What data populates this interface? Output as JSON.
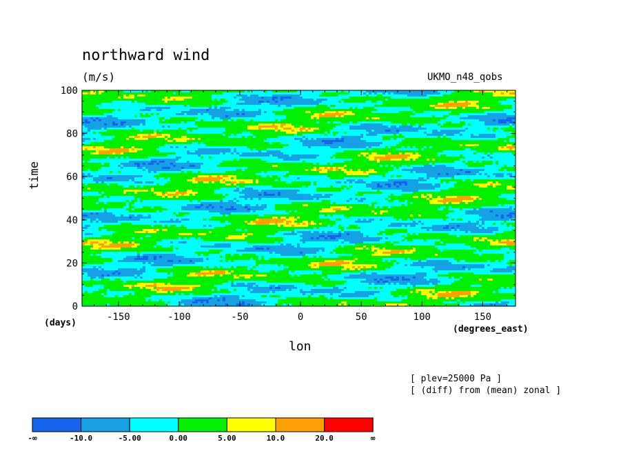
{
  "title": "northward wind",
  "units": "(m/s)",
  "dataset": "UKMO_n48_qobs",
  "notes": [
    "[ plev=25000 Pa ]",
    "[ (diff) from (mean) zonal ]"
  ],
  "chart_data": {
    "type": "heatmap",
    "title": "northward wind",
    "units": "(m/s)",
    "xlabel": "lon",
    "xunits": "(degrees_east)",
    "ylabel": "time",
    "yunits": "(days)",
    "xlim": [
      -180,
      177
    ],
    "ylim": [
      0,
      100
    ],
    "xticks": [
      -150,
      -100,
      -50,
      0,
      50,
      100,
      150
    ],
    "yticks": [
      0,
      20,
      40,
      60,
      80,
      100
    ],
    "colorbar": {
      "levels": [
        "-∞",
        "-10.0",
        "-5.00",
        "0.00",
        "5.00",
        "10.0",
        "20.0",
        "∞"
      ],
      "colors": [
        "#1464f0",
        "#16a0e6",
        "#00ffff",
        "#00f000",
        "#ffff00",
        "#ffa000",
        "#ff0000"
      ]
    }
  }
}
